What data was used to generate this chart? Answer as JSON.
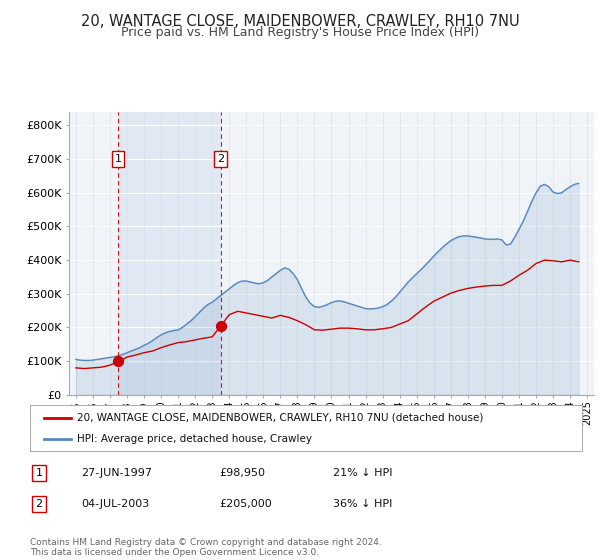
{
  "title": "20, WANTAGE CLOSE, MAIDENBOWER, CRAWLEY, RH10 7NU",
  "subtitle": "Price paid vs. HM Land Registry's House Price Index (HPI)",
  "title_fontsize": 10.5,
  "subtitle_fontsize": 9,
  "ylabel_ticks": [
    "£0",
    "£100K",
    "£200K",
    "£300K",
    "£400K",
    "£500K",
    "£600K",
    "£700K",
    "£800K"
  ],
  "ytick_values": [
    0,
    100000,
    200000,
    300000,
    400000,
    500000,
    600000,
    700000,
    800000
  ],
  "ylim": [
    0,
    840000
  ],
  "xlim_start": 1994.6,
  "xlim_end": 2025.4,
  "sale1_x": 1997.487,
  "sale1_y": 98950,
  "sale2_x": 2003.505,
  "sale2_y": 205000,
  "sale1_label": "1",
  "sale2_label": "2",
  "sale1_date": "27-JUN-1997",
  "sale1_price": "£98,950",
  "sale1_hpi": "21% ↓ HPI",
  "sale2_date": "04-JUL-2003",
  "sale2_price": "£205,000",
  "sale2_hpi": "36% ↓ HPI",
  "property_legend": "20, WANTAGE CLOSE, MAIDENBOWER, CRAWLEY, RH10 7NU (detached house)",
  "hpi_legend": "HPI: Average price, detached house, Crawley",
  "footnote": "Contains HM Land Registry data © Crown copyright and database right 2024.\nThis data is licensed under the Open Government Licence v3.0.",
  "property_color": "#cc0000",
  "hpi_color": "#5588bb",
  "hpi_fill_color": "#c8d8ee",
  "vline_color": "#cc0000",
  "background_color": "#ffffff",
  "plot_bg_color": "#f0f4f8",
  "shade_color": "#d4e0f0",
  "grid_color": "#e0e0e8",
  "hpi_data_x": [
    1995.0,
    1995.25,
    1995.5,
    1995.75,
    1996.0,
    1996.25,
    1996.5,
    1996.75,
    1997.0,
    1997.25,
    1997.5,
    1997.75,
    1998.0,
    1998.25,
    1998.5,
    1998.75,
    1999.0,
    1999.25,
    1999.5,
    1999.75,
    2000.0,
    2000.25,
    2000.5,
    2000.75,
    2001.0,
    2001.25,
    2001.5,
    2001.75,
    2002.0,
    2002.25,
    2002.5,
    2002.75,
    2003.0,
    2003.25,
    2003.5,
    2003.75,
    2004.0,
    2004.25,
    2004.5,
    2004.75,
    2005.0,
    2005.25,
    2005.5,
    2005.75,
    2006.0,
    2006.25,
    2006.5,
    2006.75,
    2007.0,
    2007.25,
    2007.5,
    2007.75,
    2008.0,
    2008.25,
    2008.5,
    2008.75,
    2009.0,
    2009.25,
    2009.5,
    2009.75,
    2010.0,
    2010.25,
    2010.5,
    2010.75,
    2011.0,
    2011.25,
    2011.5,
    2011.75,
    2012.0,
    2012.25,
    2012.5,
    2012.75,
    2013.0,
    2013.25,
    2013.5,
    2013.75,
    2014.0,
    2014.25,
    2014.5,
    2014.75,
    2015.0,
    2015.25,
    2015.5,
    2015.75,
    2016.0,
    2016.25,
    2016.5,
    2016.75,
    2017.0,
    2017.25,
    2017.5,
    2017.75,
    2018.0,
    2018.25,
    2018.5,
    2018.75,
    2019.0,
    2019.25,
    2019.5,
    2019.75,
    2020.0,
    2020.25,
    2020.5,
    2020.75,
    2021.0,
    2021.25,
    2021.5,
    2021.75,
    2022.0,
    2022.25,
    2022.5,
    2022.75,
    2023.0,
    2023.25,
    2023.5,
    2023.75,
    2024.0,
    2024.25,
    2024.5
  ],
  "hpi_data_y": [
    105000,
    103000,
    102000,
    102000,
    103000,
    105000,
    107000,
    109000,
    111000,
    113000,
    116000,
    120000,
    125000,
    130000,
    135000,
    140000,
    147000,
    153000,
    161000,
    170000,
    178000,
    184000,
    188000,
    191000,
    193000,
    200000,
    210000,
    220000,
    232000,
    245000,
    258000,
    268000,
    275000,
    285000,
    295000,
    305000,
    315000,
    325000,
    333000,
    338000,
    338000,
    335000,
    332000,
    330000,
    333000,
    340000,
    350000,
    360000,
    370000,
    377000,
    373000,
    360000,
    342000,
    315000,
    290000,
    272000,
    262000,
    260000,
    263000,
    268000,
    274000,
    278000,
    279000,
    276000,
    272000,
    268000,
    264000,
    260000,
    256000,
    255000,
    256000,
    258000,
    262000,
    268000,
    278000,
    290000,
    305000,
    320000,
    335000,
    348000,
    360000,
    372000,
    385000,
    398000,
    412000,
    425000,
    437000,
    448000,
    458000,
    465000,
    470000,
    472000,
    472000,
    470000,
    468000,
    466000,
    463000,
    462000,
    462000,
    463000,
    460000,
    445000,
    448000,
    468000,
    492000,
    516000,
    545000,
    575000,
    600000,
    620000,
    625000,
    618000,
    602000,
    598000,
    600000,
    610000,
    618000,
    625000,
    628000
  ],
  "property_data_x": [
    1995.0,
    1995.5,
    1996.0,
    1996.5,
    1997.0,
    1997.487,
    1997.75,
    1998.0,
    1998.5,
    1999.0,
    1999.5,
    2000.0,
    2000.5,
    2001.0,
    2001.5,
    2002.0,
    2002.5,
    2003.0,
    2003.505,
    2004.0,
    2004.5,
    2005.0,
    2005.5,
    2006.0,
    2006.5,
    2007.0,
    2007.5,
    2008.0,
    2008.5,
    2009.0,
    2009.5,
    2010.0,
    2010.5,
    2011.0,
    2011.5,
    2012.0,
    2012.5,
    2013.0,
    2013.5,
    2014.0,
    2014.5,
    2015.0,
    2015.5,
    2016.0,
    2016.5,
    2017.0,
    2017.5,
    2018.0,
    2018.5,
    2019.0,
    2019.5,
    2020.0,
    2020.5,
    2021.0,
    2021.5,
    2022.0,
    2022.5,
    2023.0,
    2023.5,
    2024.0,
    2024.5
  ],
  "property_data_y": [
    80000,
    78000,
    80000,
    82000,
    88000,
    98950,
    105000,
    112000,
    118000,
    125000,
    130000,
    140000,
    148000,
    155000,
    158000,
    163000,
    168000,
    172000,
    205000,
    238000,
    248000,
    243000,
    238000,
    233000,
    228000,
    236000,
    230000,
    220000,
    208000,
    193000,
    192000,
    195000,
    198000,
    198000,
    196000,
    193000,
    193000,
    196000,
    200000,
    210000,
    220000,
    240000,
    260000,
    278000,
    290000,
    302000,
    310000,
    316000,
    320000,
    323000,
    325000,
    325000,
    338000,
    355000,
    370000,
    390000,
    400000,
    398000,
    395000,
    400000,
    395000
  ]
}
